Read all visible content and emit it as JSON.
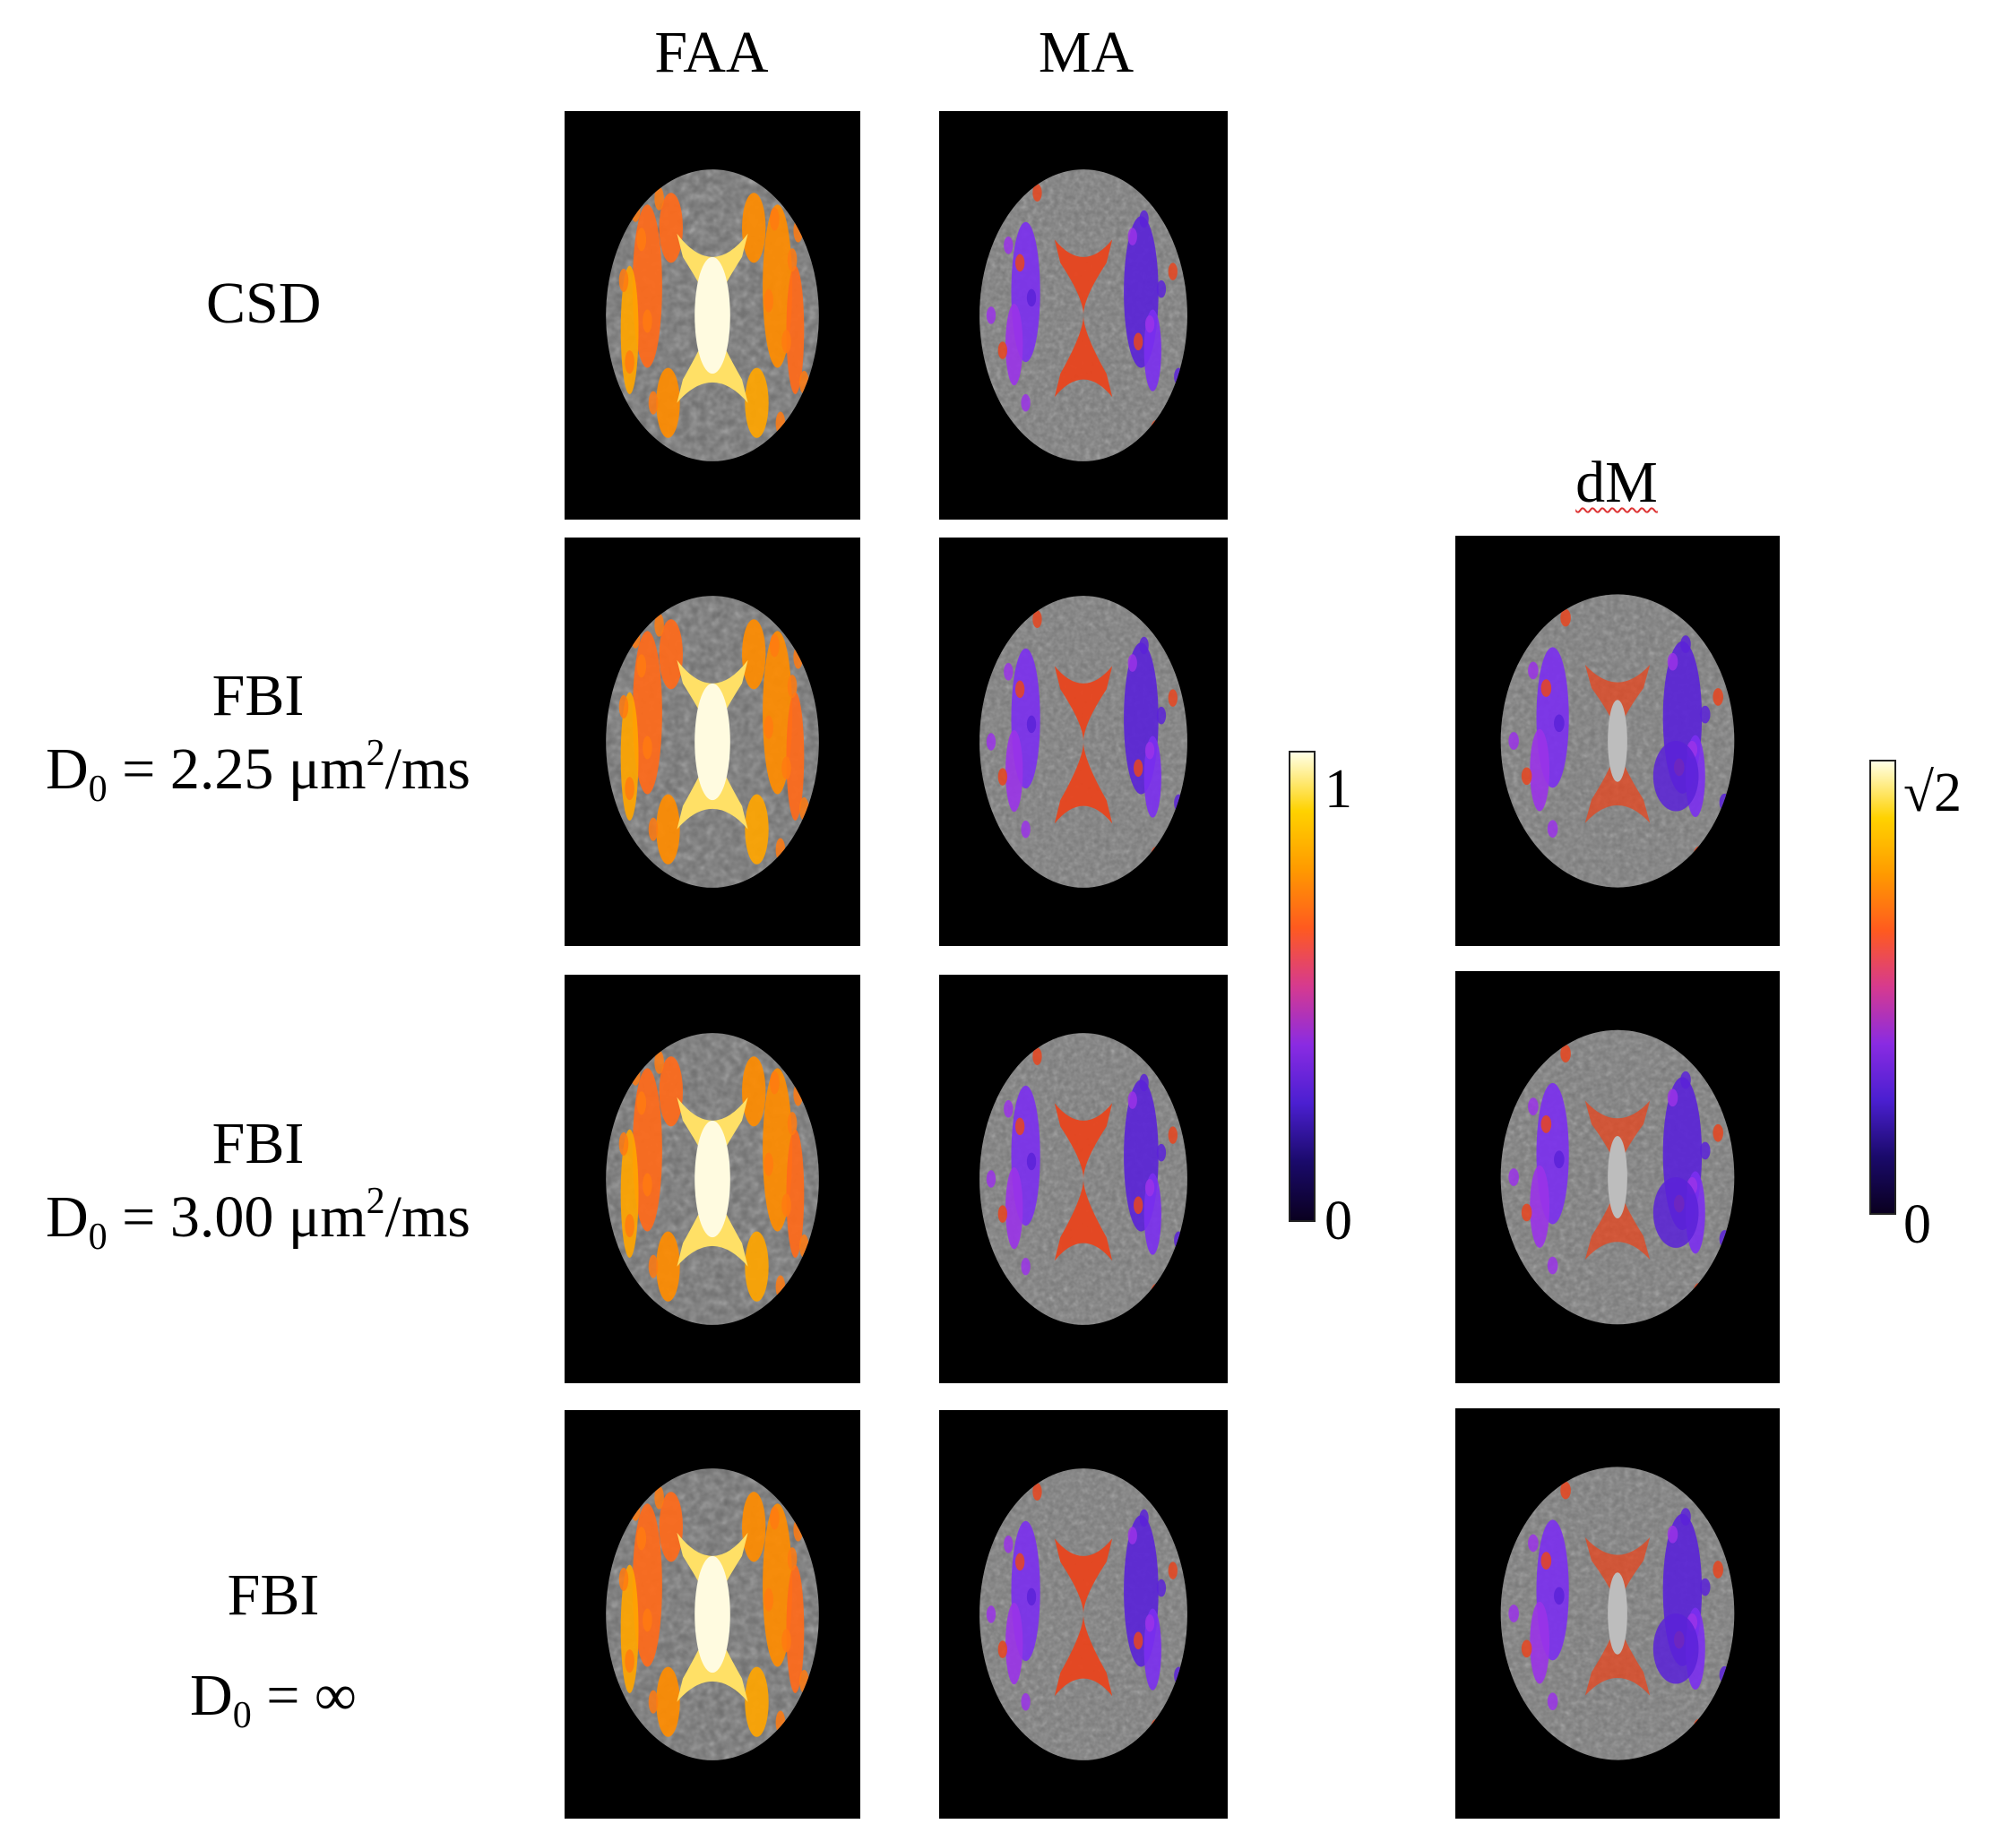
{
  "columns": {
    "faa": "FAA",
    "ma": "MA",
    "dm": "dM"
  },
  "rows": [
    {
      "method": "CSD",
      "d0_prefix": "",
      "d0_sub": "",
      "d0_mid": "",
      "d0_sup": "",
      "d0_unit": ""
    },
    {
      "method": "FBI",
      "d0_prefix": "D",
      "d0_sub": "0",
      "d0_mid": " = 2.25 μm",
      "d0_sup": "2",
      "d0_unit": "/ms"
    },
    {
      "method": "FBI",
      "d0_prefix": "D",
      "d0_sub": "0",
      "d0_mid": " = 3.00 μm",
      "d0_sup": "2",
      "d0_unit": "/ms"
    },
    {
      "method": "FBI",
      "d0_prefix": "D",
      "d0_sub": "0",
      "d0_mid": " = ∞",
      "d0_sup": "",
      "d0_unit": ""
    }
  ],
  "colorbars": {
    "faa_ma": {
      "max_label": "1",
      "min_label": "0"
    },
    "dm": {
      "max_label": "√2",
      "min_label": "0"
    }
  },
  "colormap": [
    "#0a0020",
    "#1a0a6b",
    "#4b1fd1",
    "#8a2be2",
    "#d63a8f",
    "#ff5a1f",
    "#ff9a00",
    "#ffd200",
    "#ffffe6"
  ]
}
